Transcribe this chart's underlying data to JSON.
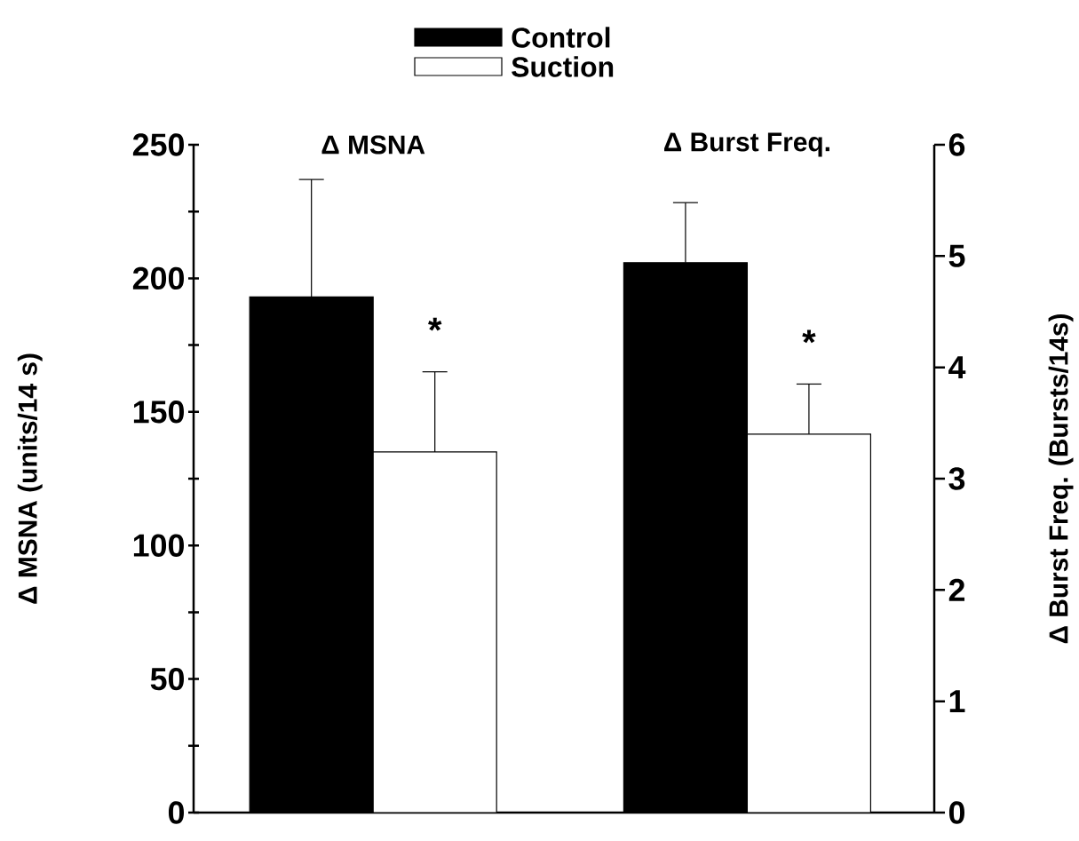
{
  "chart_data": {
    "type": "bar",
    "categories": [
      "Δ MSNA",
      "Δ Burst Freq."
    ],
    "ylabel": "Δ MSNA (units/14 s)",
    "y2label": "Δ Burst Freq. (Bursts/14s)",
    "ylim": [
      0,
      250
    ],
    "yticks": [
      0,
      {
        "value": 25,
        "label": null
      },
      50,
      {
        "value": 75,
        "label": null
      },
      100,
      {
        "value": 125,
        "label": null
      },
      150,
      {
        "value": 175,
        "label": null
      },
      200,
      {
        "value": 225,
        "label": null
      },
      250
    ],
    "y2lim": [
      0,
      6
    ],
    "y2ticks": [
      0,
      1,
      2,
      3,
      4,
      5,
      6
    ],
    "series": [
      {
        "name": "Control",
        "color": "#000000",
        "values": [
          193,
          null
        ],
        "errors": [
          [
            193,
            237
          ],
          null
        ]
      },
      {
        "name": "Suction",
        "color": "#ffffff",
        "values": [
          135,
          null
        ],
        "errors": [
          [
            135,
            165
          ],
          null
        ]
      },
      {
        "color": "#000000",
        "axis": "y2",
        "values": [
          null,
          4.94
        ],
        "errors": [
          null,
          [
            4.94,
            5.48
          ]
        ]
      },
      {
        "color": "#ffffff",
        "axis": "y2",
        "values": [
          null,
          3.4
        ],
        "errors": [
          null,
          [
            3.4,
            3.85
          ]
        ]
      }
    ],
    "annotations": [
      "*",
      "*"
    ],
    "legend": "top",
    "grid": false
  }
}
